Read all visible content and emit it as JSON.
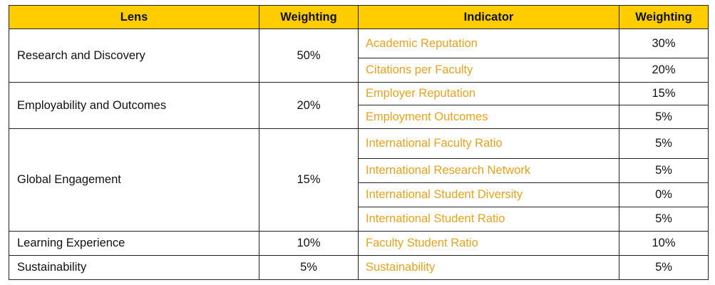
{
  "table": {
    "header": [
      "Lens",
      "Weighting",
      "Indicator",
      "Weighting"
    ],
    "groups": [
      {
        "lens": "Research and Discovery",
        "weighting": "50%",
        "indicators": [
          {
            "name": "Academic Reputation",
            "weighting": "30%"
          },
          {
            "name": "Citations per Faculty",
            "weighting": "20%"
          }
        ]
      },
      {
        "lens": "Employability and Outcomes",
        "weighting": "20%",
        "indicators": [
          {
            "name": "Employer Reputation",
            "weighting": "15%"
          },
          {
            "name": "Employment Outcomes",
            "weighting": "5%"
          }
        ]
      },
      {
        "lens": "Global Engagement",
        "weighting": "15%",
        "indicators": [
          {
            "name": "International Faculty Ratio",
            "weighting": "5%"
          },
          {
            "name": "International Research Network",
            "weighting": "5%"
          },
          {
            "name": "International Student Diversity",
            "weighting": "0%"
          },
          {
            "name": "International Student Ratio",
            "weighting": "5%"
          }
        ]
      },
      {
        "lens": "Learning Experience",
        "weighting": "10%",
        "indicators": [
          {
            "name": "Faculty Student Ratio",
            "weighting": "10%"
          }
        ]
      },
      {
        "lens": "Sustainability",
        "weighting": "5%",
        "indicators": [
          {
            "name": "Sustainability",
            "weighting": "5%"
          }
        ]
      }
    ]
  }
}
